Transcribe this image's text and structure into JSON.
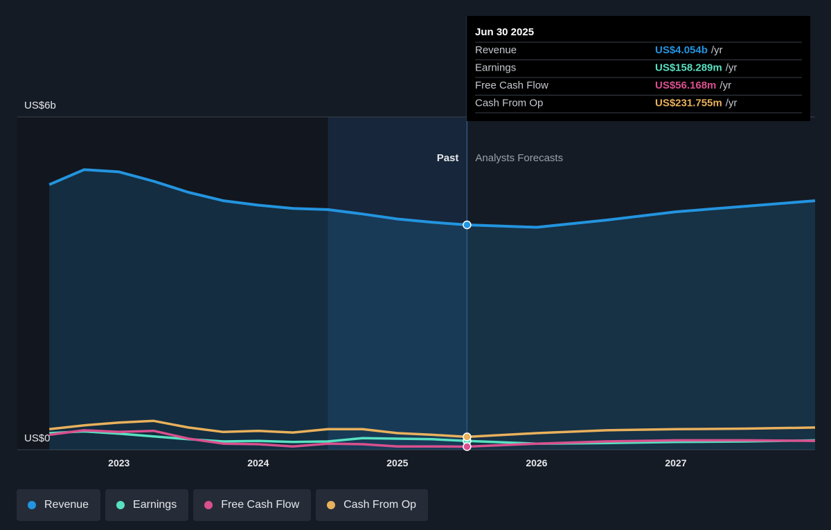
{
  "chart_data": {
    "type": "line",
    "x": [
      2022.5,
      2022.75,
      2023,
      2023.25,
      2023.5,
      2023.75,
      2024,
      2024.25,
      2024.5,
      2024.75,
      2025,
      2025.25,
      2025.5,
      2026,
      2026.5,
      2027,
      2027.5,
      2028
    ],
    "series": [
      {
        "name": "Revenue",
        "color": "#2394df",
        "values": [
          4.78,
          5.05,
          5.01,
          4.84,
          4.64,
          4.49,
          4.41,
          4.35,
          4.33,
          4.25,
          4.16,
          4.1,
          4.054,
          4.01,
          4.14,
          4.29,
          4.39,
          4.49
        ]
      },
      {
        "name": "Earnings",
        "color": "#58e1c1",
        "values": [
          0.3,
          0.33,
          0.29,
          0.24,
          0.19,
          0.15,
          0.16,
          0.14,
          0.15,
          0.21,
          0.2,
          0.19,
          0.158,
          0.11,
          0.12,
          0.14,
          0.15,
          0.17
        ]
      },
      {
        "name": "Free Cash Flow",
        "color": "#d9508e",
        "values": [
          0.27,
          0.35,
          0.32,
          0.34,
          0.2,
          0.11,
          0.1,
          0.06,
          0.11,
          0.1,
          0.06,
          0.06,
          0.056,
          0.11,
          0.15,
          0.17,
          0.17,
          0.16
        ]
      },
      {
        "name": "Cash From Op",
        "color": "#e9b15c",
        "values": [
          0.37,
          0.44,
          0.49,
          0.52,
          0.4,
          0.32,
          0.34,
          0.31,
          0.37,
          0.37,
          0.3,
          0.27,
          0.232,
          0.3,
          0.35,
          0.37,
          0.38,
          0.4
        ]
      }
    ],
    "xlim": [
      2022.27,
      2028
    ],
    "xticks": [
      2023,
      2024,
      2025,
      2026,
      2027
    ],
    "ylim": [
      0,
      6
    ],
    "yticks": [
      {
        "value": 0,
        "label": "US$0"
      },
      {
        "value": 6,
        "label": "US$6b"
      }
    ],
    "divider_x": 2025.5,
    "highlight_start": 2024.5,
    "past_label": "Past",
    "forecast_label": "Analysts Forecasts",
    "tooltip": {
      "date": "Jun 30 2025",
      "unit": "/yr",
      "rows": [
        {
          "label": "Revenue",
          "value": "US$4.054b"
        },
        {
          "label": "Earnings",
          "value": "US$158.289m"
        },
        {
          "label": "Free Cash Flow",
          "value": "US$56.168m"
        },
        {
          "label": "Cash From Op",
          "value": "US$231.755m"
        }
      ]
    }
  }
}
